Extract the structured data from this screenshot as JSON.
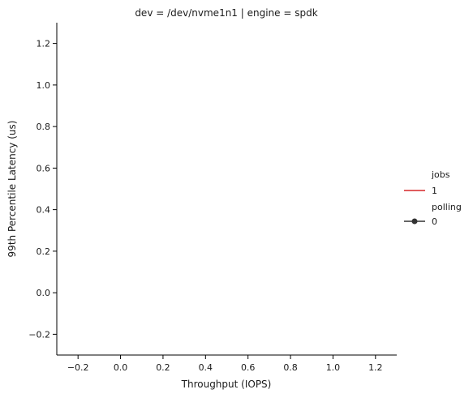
{
  "chart_data": {
    "type": "line",
    "title": "dev = /dev/nvme1n1 | engine = spdk",
    "xlabel": "Throughput (IOPS)",
    "ylabel": "99th Percentile Latency (us)",
    "xlim": [
      -0.3,
      1.3
    ],
    "ylim": [
      -0.3,
      1.3
    ],
    "xticks": [
      -0.2,
      0.0,
      0.2,
      0.4,
      0.6,
      0.8,
      1.0,
      1.2
    ],
    "xtick_labels": [
      "−0.2",
      "0.0",
      "0.2",
      "0.4",
      "0.6",
      "0.8",
      "1.0",
      "1.2"
    ],
    "yticks": [
      -0.2,
      0.0,
      0.2,
      0.4,
      0.6,
      0.8,
      1.0,
      1.2
    ],
    "ytick_labels": [
      "−0.2",
      "0.0",
      "0.2",
      "0.4",
      "0.6",
      "0.8",
      "1.0",
      "1.2"
    ],
    "grid": false,
    "series": [],
    "legend": {
      "placement": "right",
      "groups": [
        {
          "title": "jobs",
          "entries": [
            {
              "label": "1",
              "color": "#d62728",
              "marker": "line"
            }
          ]
        },
        {
          "title": "polling",
          "entries": [
            {
              "label": "0",
              "color": "#333333",
              "marker": "line-dot"
            }
          ]
        }
      ]
    }
  }
}
